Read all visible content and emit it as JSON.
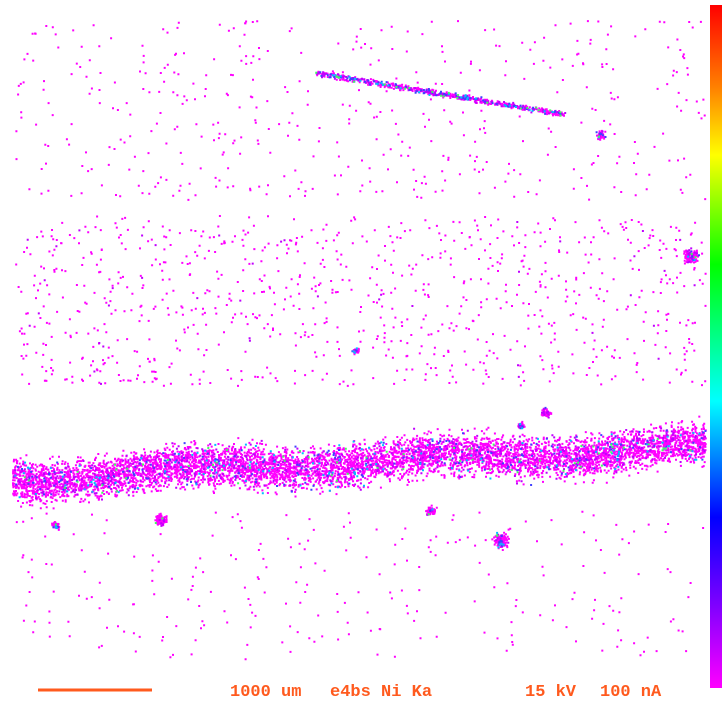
{
  "caption": {
    "scale": "1000 um",
    "sample": "e4bs Ni Ka",
    "voltage": "15 kV",
    "current": "100 nA"
  }
}
